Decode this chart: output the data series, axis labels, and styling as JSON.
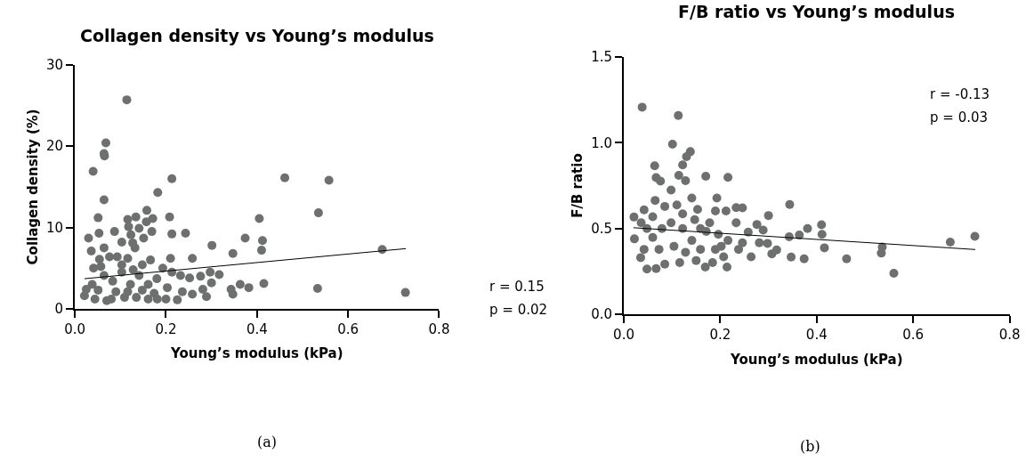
{
  "chart_data": [
    {
      "type": "scatter",
      "title": "Collagen density vs Young’s modulus",
      "xlabel": "Young’s modulus (kPa)",
      "ylabel": "Collagen density (%)",
      "xlim": [
        0,
        0.8
      ],
      "xticks": [
        {
          "value": 0,
          "label": "0.0"
        },
        0.2,
        0.4,
        0.6,
        0.8
      ],
      "ylim": [
        0,
        30
      ],
      "yticks": [
        0,
        10,
        20,
        30
      ],
      "marker": "circle",
      "annotations": [
        "r = 0.15",
        "p = 0.02",
        "(a)"
      ],
      "series": [
        {
          "color": "#6e7070",
          "x": [
            0.114,
            0.068,
            0.064,
            0.065,
            0.04,
            0.213,
            0.182,
            0.461,
            0.558,
            0.064,
            0.158,
            0.051,
            0.116,
            0.134,
            0.171,
            0.157,
            0.208,
            0.405,
            0.535,
            0.118,
            0.141,
            0.053,
            0.087,
            0.03,
            0.169,
            0.213,
            0.243,
            0.151,
            0.123,
            0.103,
            0.127,
            0.374,
            0.412,
            0.301,
            0.064,
            0.132,
            0.036,
            0.41,
            0.675,
            0.347,
            0.258,
            0.21,
            0.054,
            0.076,
            0.093,
            0.116,
            0.166,
            0.041,
            0.148,
            0.193,
            0.297,
            0.317,
            0.276,
            0.252,
            0.232,
            0.3,
            0.415,
            0.363,
            0.343,
            0.382,
            0.347,
            0.533,
            0.726,
            0.281,
            0.289,
            0.258,
            0.225,
            0.236,
            0.021,
            0.044,
            0.07,
            0.08,
            0.109,
            0.135,
            0.161,
            0.181,
            0.2,
            0.038,
            0.064,
            0.083,
            0.103,
            0.122,
            0.141,
            0.161,
            0.18,
            0.203,
            0.025,
            0.051,
            0.09,
            0.116,
            0.148,
            0.174,
            0.213,
            0.103,
            0.057,
            0.128
          ],
          "values": [
            25.7,
            20.4,
            19.1,
            18.8,
            16.9,
            16.0,
            14.3,
            16.1,
            15.8,
            13.4,
            12.1,
            11.2,
            11.0,
            11.3,
            11.1,
            10.7,
            11.3,
            11.1,
            11.8,
            10.1,
            9.9,
            9.3,
            9.5,
            8.7,
            9.5,
            9.2,
            9.3,
            8.7,
            9.1,
            8.2,
            8.1,
            8.7,
            8.4,
            7.8,
            7.5,
            7.5,
            7.1,
            7.2,
            7.3,
            6.8,
            6.2,
            6.2,
            6.1,
            6.4,
            6.4,
            6.2,
            6.0,
            5.0,
            5.4,
            5.0,
            4.5,
            4.2,
            4.0,
            3.8,
            4.1,
            3.2,
            3.1,
            3.0,
            2.4,
            2.6,
            1.8,
            2.5,
            2.0,
            2.4,
            1.5,
            1.8,
            1.1,
            2.1,
            1.6,
            1.2,
            1.0,
            1.2,
            1.4,
            1.4,
            1.2,
            1.2,
            1.2,
            3.0,
            4.1,
            3.4,
            4.5,
            3.0,
            4.1,
            3.0,
            3.7,
            2.6,
            2.4,
            2.3,
            2.1,
            2.1,
            2.3,
            1.9,
            4.5,
            5.4,
            5.2,
            4.8
          ]
        },
        {
          "type": "line",
          "marker": "none",
          "color": "#000000",
          "x": [
            0.021,
            0.727
          ],
          "values": [
            3.7,
            7.4
          ]
        }
      ]
    },
    {
      "type": "scatter",
      "title": "F/B ratio vs Young’s modulus",
      "xlabel": "Young’s modulus (kPa)",
      "ylabel": "F/B ratio",
      "xlim": [
        0,
        0.8
      ],
      "xticks": [
        {
          "value": 0,
          "label": "0.0"
        },
        0.2,
        0.4,
        0.6,
        0.8
      ],
      "ylim": [
        0,
        1.5
      ],
      "yticks": [
        {
          "value": 0,
          "label": "0.0"
        },
        0.5,
        {
          "value": 1,
          "label": "1.0"
        },
        1.5
      ],
      "marker": "circle",
      "annotations": [
        "r = -0.13",
        "p = 0.03",
        "(b)"
      ],
      "series": [
        {
          "color": "#6e7070",
          "x": [
            0.038,
            0.113,
            0.101,
            0.138,
            0.13,
            0.122,
            0.064,
            0.067,
            0.076,
            0.114,
            0.128,
            0.17,
            0.216,
            0.098,
            0.193,
            0.141,
            0.065,
            0.344,
            0.233,
            0.246,
            0.042,
            0.021,
            0.3,
            0.19,
            0.212,
            0.085,
            0.11,
            0.153,
            0.276,
            0.289,
            0.381,
            0.41,
            0.411,
            0.343,
            0.364,
            0.258,
            0.728,
            0.677,
            0.536,
            0.534,
            0.56,
            0.416,
            0.462,
            0.374,
            0.347,
            0.317,
            0.307,
            0.298,
            0.281,
            0.246,
            0.238,
            0.264,
            0.214,
            0.207,
            0.169,
            0.15,
            0.048,
            0.067,
            0.035,
            0.085,
            0.116,
            0.184,
            0.022,
            0.042,
            0.06,
            0.079,
            0.098,
            0.122,
            0.141,
            0.159,
            0.178,
            0.196,
            0.216,
            0.233,
            0.048,
            0.073,
            0.104,
            0.128,
            0.159,
            0.19,
            0.202,
            0.036,
            0.06,
            0.122,
            0.147,
            0.171
          ],
          "values": [
            1.207,
            1.159,
            0.991,
            0.948,
            0.919,
            0.871,
            0.866,
            0.797,
            0.776,
            0.81,
            0.779,
            0.805,
            0.798,
            0.724,
            0.678,
            0.678,
            0.664,
            0.64,
            0.622,
            0.621,
            0.609,
            0.567,
            0.576,
            0.603,
            0.603,
            0.629,
            0.638,
            0.612,
            0.524,
            0.491,
            0.5,
            0.522,
            0.466,
            0.452,
            0.462,
            0.479,
            0.455,
            0.421,
            0.393,
            0.357,
            0.24,
            0.388,
            0.324,
            0.324,
            0.334,
            0.376,
            0.353,
            0.414,
            0.417,
            0.417,
            0.379,
            0.336,
            0.276,
            0.336,
            0.276,
            0.314,
            0.264,
            0.267,
            0.331,
            0.293,
            0.302,
            0.302,
            0.44,
            0.379,
            0.448,
            0.5,
            0.534,
            0.5,
            0.431,
            0.5,
            0.534,
            0.466,
            0.431,
            0.534,
            0.5,
            0.379,
            0.397,
            0.362,
            0.379,
            0.379,
            0.397,
            0.534,
            0.569,
            0.586,
            0.552,
            0.483
          ]
        },
        {
          "type": "line",
          "marker": "none",
          "color": "#000000",
          "x": [
            0.02,
            0.729
          ],
          "values": [
            0.505,
            0.378
          ]
        }
      ]
    }
  ]
}
